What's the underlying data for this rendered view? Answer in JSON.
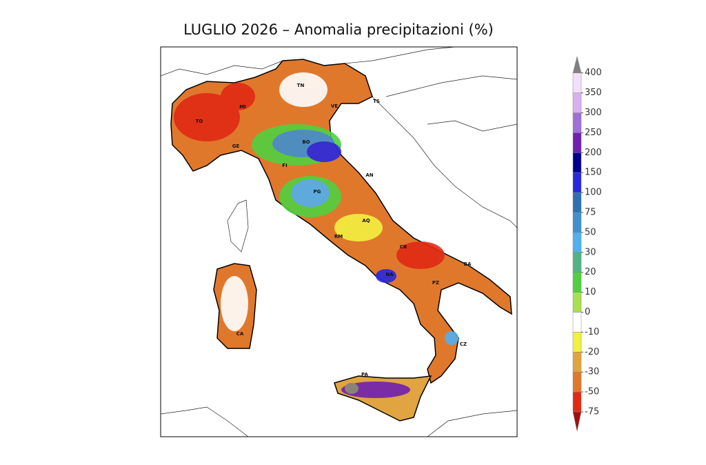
{
  "title": "LUGLIO 2026 – Anomalia precipitazioni (%)",
  "map": {
    "labels": [
      "TN",
      "TS",
      "VE",
      "MI",
      "TO",
      "GE",
      "BO",
      "FI",
      "AN",
      "PG",
      "AQ",
      "RM",
      "CB",
      "BA",
      "NA",
      "PZ",
      "CA",
      "CZ",
      "PA"
    ]
  },
  "colorbar": {
    "ticks": [
      -75,
      -50,
      -30,
      -20,
      -10,
      0,
      10,
      20,
      30,
      50,
      75,
      100,
      150,
      200,
      250,
      300,
      350,
      400
    ],
    "colors": [
      "#e02a14",
      "#e0782c",
      "#e0a440",
      "#f4f040",
      "#ffffff",
      "#a8e050",
      "#50d040",
      "#50b480",
      "#50b0f0",
      "#4090d0",
      "#3070b0",
      "#2828e0",
      "#00008c",
      "#7020b0",
      "#a070d8",
      "#d8b0f0",
      "#f2e0fa"
    ],
    "under_color": "#a01010",
    "over_color": "#808080"
  }
}
